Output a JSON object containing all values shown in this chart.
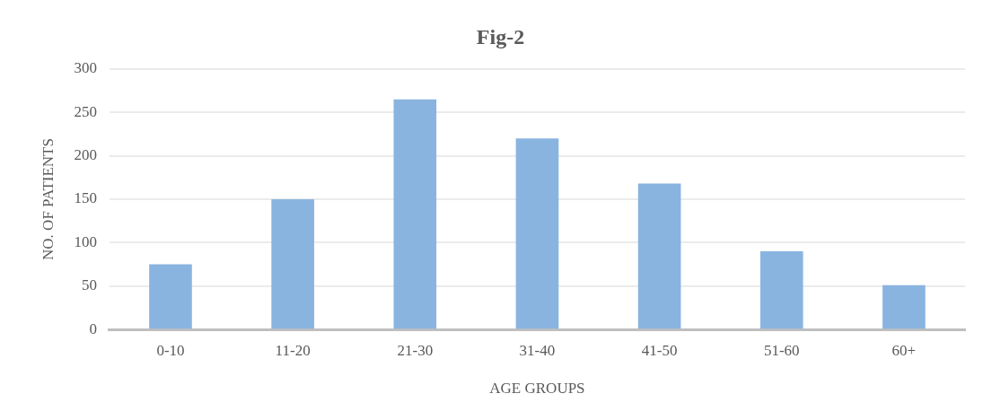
{
  "chart_data": {
    "type": "bar",
    "title": "Fig-2",
    "xlabel": "AGE GROUPS",
    "ylabel": "NO. OF PATIENTS",
    "categories": [
      "0-10",
      "11-20",
      "21-30",
      "31-40",
      "41-50",
      "51-60",
      "60+"
    ],
    "values": [
      75,
      150,
      265,
      220,
      168,
      90,
      51
    ],
    "color": "#8ab4e0",
    "ylim": [
      0,
      300
    ],
    "yticks": [
      0,
      50,
      100,
      150,
      200,
      250,
      300
    ],
    "grid": "y",
    "legend": false
  }
}
